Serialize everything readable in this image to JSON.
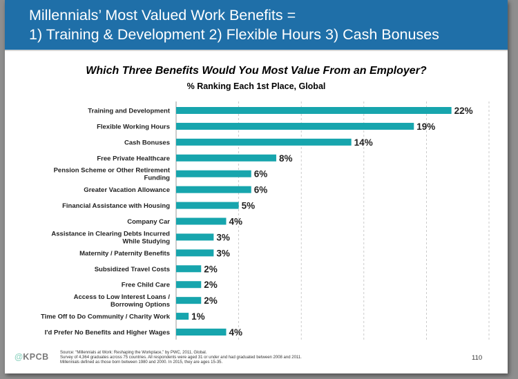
{
  "header": {
    "title_line1": "Millennials’ Most Valued Work Benefits =",
    "title_line2": "1) Training & Development  2) Flexible Hours  3) Cash Bonuses"
  },
  "colors": {
    "header_bg": "#1f6fa8",
    "bar": "#17a5ad",
    "logo": "#5bc0a8"
  },
  "chart_data": {
    "type": "bar",
    "orientation": "horizontal",
    "title": "Which Three Benefits Would You Most Value From an Employer?",
    "subtitle": "% Ranking Each 1st Place, Global",
    "categories": [
      [
        "Training and Development"
      ],
      [
        "Flexible Working Hours"
      ],
      [
        "Cash Bonuses"
      ],
      [
        "Free Private Healthcare"
      ],
      [
        "Pension Scheme or Other Retirement",
        "Funding"
      ],
      [
        "Greater Vacation Allowance"
      ],
      [
        "Financial Assistance with Housing"
      ],
      [
        "Company Car"
      ],
      [
        "Assistance in Clearing Debts Incurred",
        "While Studying"
      ],
      [
        "Maternity / Paternity Benefits"
      ],
      [
        "Subsidized Travel Costs"
      ],
      [
        "Free Child Care"
      ],
      [
        "Access to Low Interest Loans /",
        "Borrowing Options"
      ],
      [
        "Time Off to Do Community / Charity Work"
      ],
      [
        "I'd Prefer No Benefits and Higher Wages"
      ]
    ],
    "values": [
      22,
      19,
      14,
      8,
      6,
      6,
      5,
      4,
      3,
      3,
      2,
      2,
      2,
      1,
      4
    ],
    "value_labels": [
      "22%",
      "19%",
      "14%",
      "8%",
      "6%",
      "6%",
      "5%",
      "4%",
      "3%",
      "3%",
      "2%",
      "2%",
      "2%",
      "1%",
      "4%"
    ],
    "xlim": [
      0,
      25
    ],
    "grid": true,
    "legend": "none"
  },
  "footer": {
    "logo_at": "@",
    "logo_brand": "KPCB",
    "source_line1": "Source: “Millennials at Work: Reshaping the Workplace,” by PWC, 2011, Global.",
    "source_line2": "Survey of 4,364 graduates across 75 countries. All respondents were aged 31 or under and had graduated between 2008 and 2011.",
    "source_line3": "Millennials defined as those born between 1980 and 2000. In 2015, they are ages 15-35.",
    "page_number": "110"
  }
}
